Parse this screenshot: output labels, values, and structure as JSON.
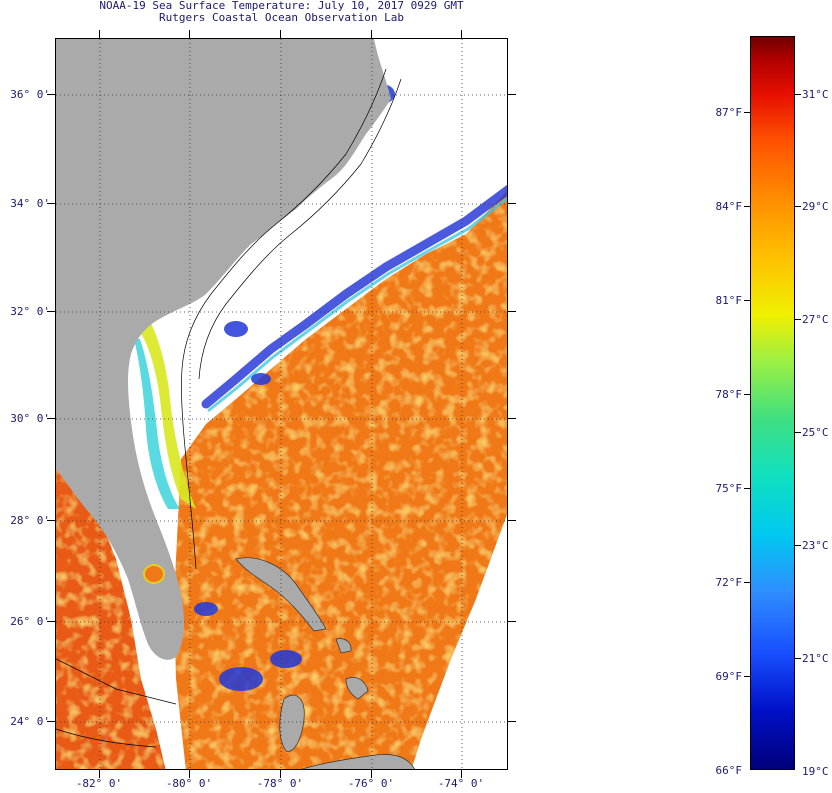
{
  "header": {
    "title": "NOAA-19 Sea Surface Temperature:  July 10, 2017 0929 GMT",
    "subtitle": "Rutgers Coastal Ocean Observation Lab"
  },
  "map": {
    "lat_labels": [
      "36° 0'",
      "34° 0'",
      "32° 0'",
      "30° 0'",
      "28° 0'",
      "26° 0'",
      "24° 0'"
    ],
    "lon_labels": [
      "-82° 0'",
      "-80° 0'",
      "-78° 0'",
      "-76° 0'",
      "-74° 0'"
    ],
    "lat_range": [
      23.0,
      37.0
    ],
    "lon_range": [
      -83.0,
      -73.0
    ],
    "colors": {
      "land": "#aaaaaa",
      "cloud": "#ffffff",
      "warm_water": "#f07010",
      "cool_water": "#2040e0"
    }
  },
  "colorbar": {
    "fahrenheit_labels": [
      "87°F",
      "84°F",
      "81°F",
      "78°F",
      "75°F",
      "72°F",
      "69°F",
      "66°F"
    ],
    "celsius_labels": [
      "31°C",
      "29°C",
      "27°C",
      "25°C",
      "23°C",
      "21°C",
      "19°C"
    ]
  }
}
